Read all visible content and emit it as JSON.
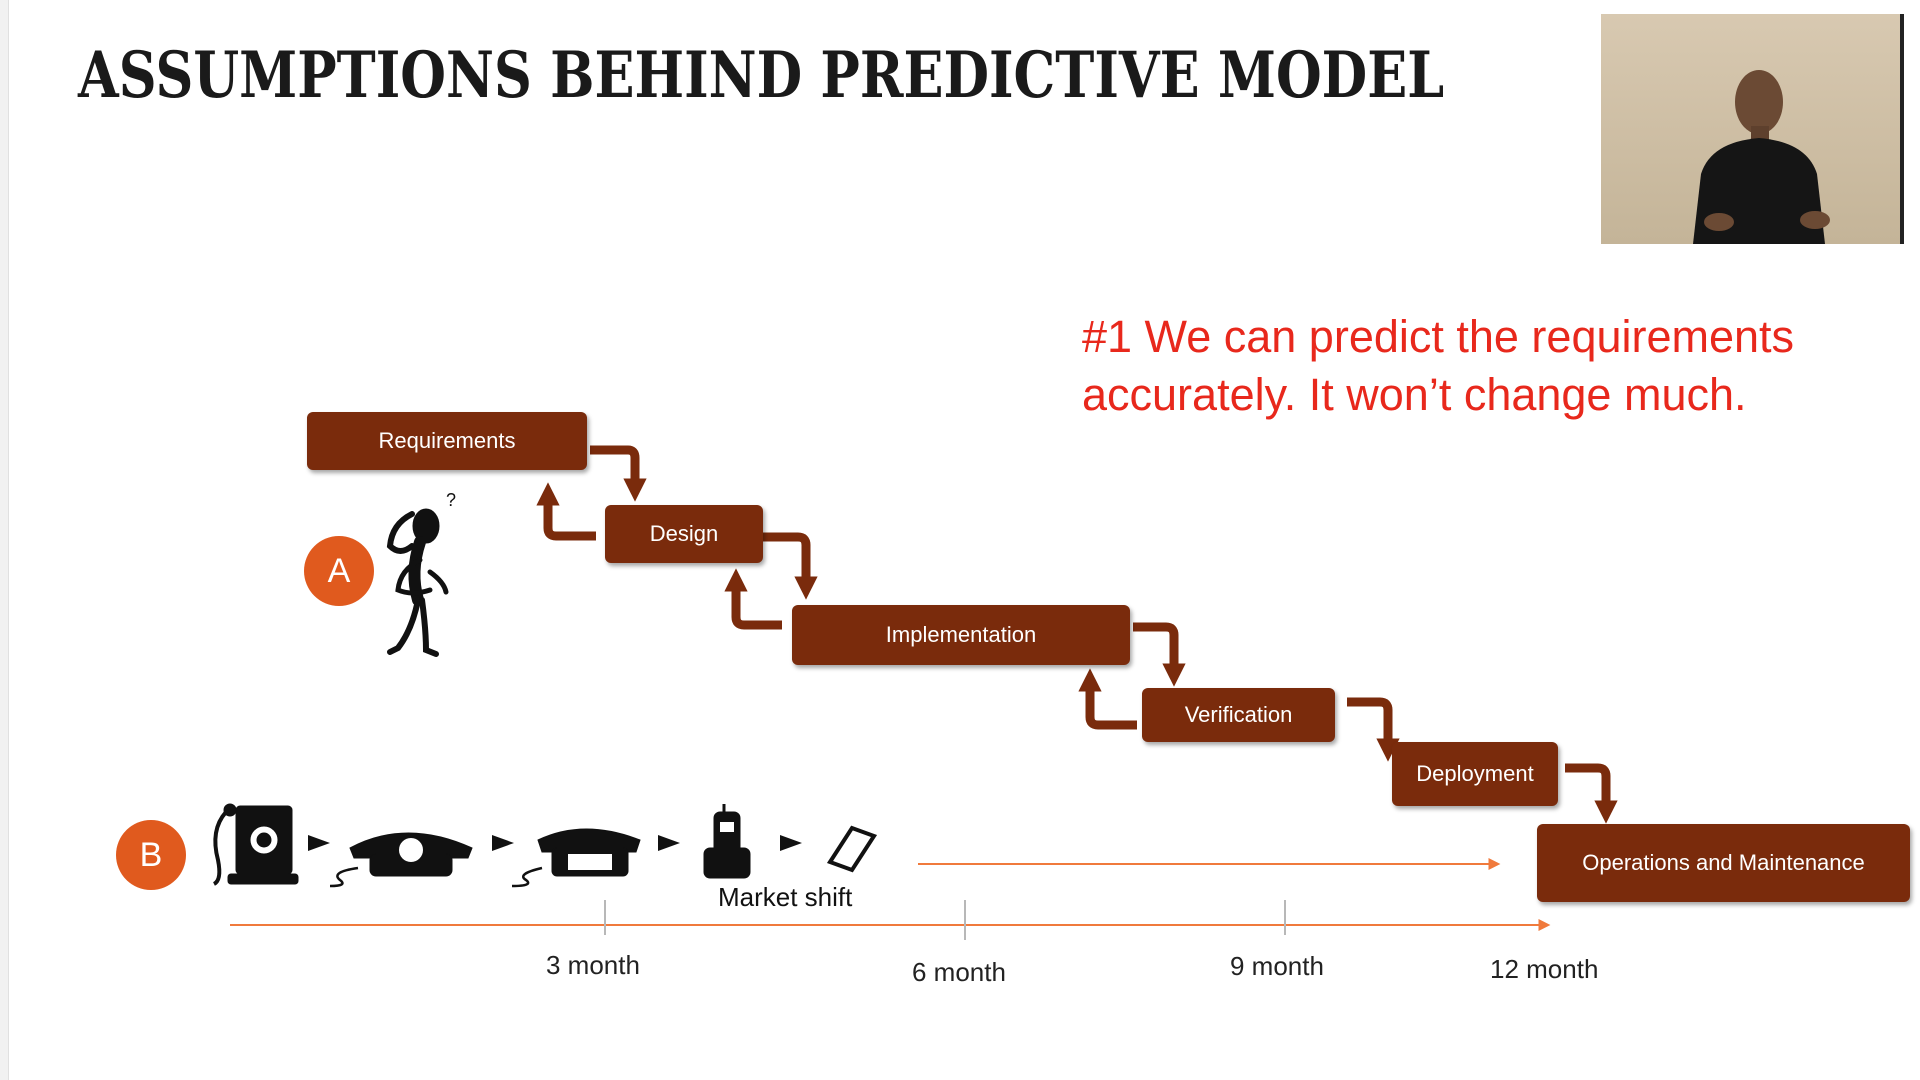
{
  "slide": {
    "title": "ASSUMPTIONS BEHIND PREDICTIVE MODEL",
    "claim_line1": "#1 We can predict the requirements",
    "claim_line2": "accurately. It won’t change much."
  },
  "waterfall": {
    "stages": [
      "Requirements",
      "Design",
      "Implementation",
      "Verification",
      "Deployment",
      "Operations and Maintenance"
    ],
    "box_color": "#7a2b0c"
  },
  "badges": {
    "a": "A",
    "b": "B"
  },
  "phones": {
    "icons": [
      "wall-phone-icon",
      "rotary-phone-icon",
      "pushbutton-phone-icon",
      "cordless-phone-icon",
      "smartphone-icon"
    ],
    "caption": "Market shift"
  },
  "timeline": {
    "ticks": [
      "3 month",
      "6 month",
      "9 month",
      "12 month"
    ]
  },
  "colors": {
    "accent_red": "#e8281c",
    "badge_orange": "#e05a1e",
    "timeline_orange": "#f07a3c"
  }
}
